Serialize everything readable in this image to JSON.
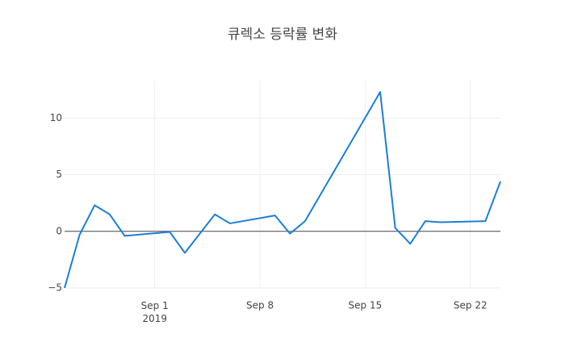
{
  "chart_data": {
    "type": "line",
    "title": "큐렉소 등락률 변화",
    "x": [
      "2019-08-26",
      "2019-08-27",
      "2019-08-28",
      "2019-08-29",
      "2019-08-30",
      "2019-09-02",
      "2019-09-03",
      "2019-09-05",
      "2019-09-06",
      "2019-09-09",
      "2019-09-10",
      "2019-09-11",
      "2019-09-16",
      "2019-09-17",
      "2019-09-18",
      "2019-09-19",
      "2019-09-20",
      "2019-09-23",
      "2019-09-24"
    ],
    "series": [
      {
        "color": "#1c7ed6",
        "values": [
          -5.0,
          -0.3,
          2.3,
          1.5,
          -0.4,
          -0.05,
          -1.9,
          1.5,
          0.7,
          1.4,
          -0.2,
          0.9,
          12.3,
          0.3,
          -1.1,
          0.9,
          0.8,
          0.9,
          4.4
        ]
      }
    ],
    "xlim": [
      "2019-08-26",
      "2019-09-24"
    ],
    "xticks": [
      {
        "value": "2019-09-01",
        "label": "Sep 1\n2019"
      },
      {
        "value": "2019-09-08",
        "label": "Sep 8"
      },
      {
        "value": "2019-09-15",
        "label": "Sep 15"
      },
      {
        "value": "2019-09-22",
        "label": "Sep 22"
      }
    ],
    "ylim": [
      -5,
      13.3
    ],
    "yticks": [
      {
        "value": -5,
        "label": "−5"
      },
      0,
      5,
      10
    ],
    "grid": true,
    "zeroline": true
  }
}
